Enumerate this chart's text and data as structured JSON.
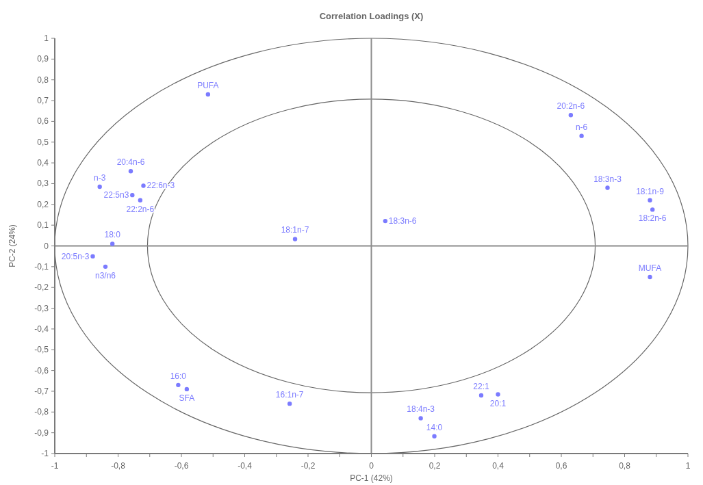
{
  "chart_data": {
    "type": "scatter",
    "title": "Correlation Loadings (X)",
    "xlabel": "PC-1 (42%)",
    "ylabel": "PC-2 (24%)",
    "xlim": [
      -1,
      1
    ],
    "ylim": [
      -1,
      1
    ],
    "xticks": [
      -1,
      {
        "value": -0.9,
        "label": null
      },
      {
        "value": -0.8,
        "label": "-0,8"
      },
      {
        "value": -0.7,
        "label": null
      },
      {
        "value": -0.6,
        "label": "-0,6"
      },
      {
        "value": -0.5,
        "label": null
      },
      {
        "value": -0.4,
        "label": "-0,4"
      },
      {
        "value": -0.3,
        "label": null
      },
      {
        "value": -0.2,
        "label": "-0,2"
      },
      {
        "value": -0.1,
        "label": null
      },
      0,
      {
        "value": 0.1,
        "label": null
      },
      {
        "value": 0.2,
        "label": "0,2"
      },
      {
        "value": 0.3,
        "label": null
      },
      {
        "value": 0.4,
        "label": "0,4"
      },
      {
        "value": 0.5,
        "label": null
      },
      {
        "value": 0.6,
        "label": "0,6"
      },
      {
        "value": 0.7,
        "label": null
      },
      {
        "value": 0.8,
        "label": "0,8"
      },
      {
        "value": 0.9,
        "label": null
      },
      1
    ],
    "yticks": [
      -1,
      {
        "value": -0.9,
        "label": "-0,9"
      },
      {
        "value": -0.8,
        "label": "-0,8"
      },
      {
        "value": -0.7,
        "label": "-0,7"
      },
      {
        "value": -0.6,
        "label": "-0,6"
      },
      {
        "value": -0.5,
        "label": "-0,5"
      },
      {
        "value": -0.4,
        "label": "-0,4"
      },
      {
        "value": -0.3,
        "label": "-0,3"
      },
      {
        "value": -0.2,
        "label": "-0,2"
      },
      {
        "value": -0.1,
        "label": "-0,1"
      },
      0,
      {
        "value": 0.1,
        "label": "0,1"
      },
      {
        "value": 0.2,
        "label": "0,2"
      },
      {
        "value": 0.3,
        "label": "0,3"
      },
      {
        "value": 0.4,
        "label": "0,4"
      },
      {
        "value": 0.5,
        "label": "0,5"
      },
      {
        "value": 0.6,
        "label": "0,6"
      },
      {
        "value": 0.7,
        "label": "0,7"
      },
      {
        "value": 0.8,
        "label": "0,8"
      },
      {
        "value": 0.9,
        "label": "0,9"
      },
      1
    ],
    "x": [
      -0.516,
      -0.858,
      -0.76,
      -0.72,
      -0.755,
      -0.73,
      -0.818,
      -0.88,
      -0.84,
      -0.241,
      0.044,
      0.63,
      0.664,
      0.746,
      0.88,
      0.888,
      0.88,
      -0.61,
      -0.583,
      -0.258,
      0.347,
      0.4,
      0.156,
      0.199
    ],
    "values": [
      0.73,
      0.285,
      0.36,
      0.29,
      0.245,
      0.22,
      0.01,
      -0.05,
      -0.1,
      0.033,
      0.12,
      0.63,
      0.53,
      0.28,
      0.22,
      0.175,
      -0.15,
      -0.67,
      -0.69,
      -0.76,
      -0.72,
      -0.715,
      -0.83,
      -0.917
    ],
    "color": "#7b7bff",
    "marker": "circle",
    "annotations": [
      {
        "text": "PUFA",
        "x": -0.516,
        "y": 0.73
      },
      {
        "text": "n-3",
        "x": -0.858,
        "y": 0.285
      },
      {
        "text": "20:4n-6",
        "x": -0.76,
        "y": 0.36
      },
      {
        "text": "22:6n-3",
        "x": -0.72,
        "y": 0.29
      },
      {
        "text": "22:5n3",
        "x": -0.755,
        "y": 0.245
      },
      {
        "text": "22:2n-6",
        "x": -0.73,
        "y": 0.22
      },
      {
        "text": "18:0",
        "x": -0.818,
        "y": 0.01
      },
      {
        "text": "20:5n-3",
        "x": -0.88,
        "y": -0.05
      },
      {
        "text": "n3/n6",
        "x": -0.84,
        "y": -0.1
      },
      {
        "text": "18:1n-7",
        "x": -0.241,
        "y": 0.033
      },
      {
        "text": "18:3n-6",
        "x": 0.044,
        "y": 0.12
      },
      {
        "text": "20:2n-6",
        "x": 0.63,
        "y": 0.63
      },
      {
        "text": "n-6",
        "x": 0.664,
        "y": 0.53
      },
      {
        "text": "18:3n-3",
        "x": 0.746,
        "y": 0.28
      },
      {
        "text": "18:1n-9",
        "x": 0.88,
        "y": 0.22
      },
      {
        "text": "18:2n-6",
        "x": 0.888,
        "y": 0.175
      },
      {
        "text": "MUFA",
        "x": 0.88,
        "y": -0.15
      },
      {
        "text": "16:0",
        "x": -0.61,
        "y": -0.67
      },
      {
        "text": "SFA",
        "x": -0.583,
        "y": -0.69
      },
      {
        "text": "16:1n-7",
        "x": -0.258,
        "y": -0.76
      },
      {
        "text": "22:1",
        "x": 0.347,
        "y": -0.72
      },
      {
        "text": "20:1",
        "x": 0.4,
        "y": -0.715
      },
      {
        "text": "18:4n-3",
        "x": 0.156,
        "y": -0.83
      },
      {
        "text": "14:0",
        "x": 0.199,
        "y": -0.917
      }
    ]
  }
}
